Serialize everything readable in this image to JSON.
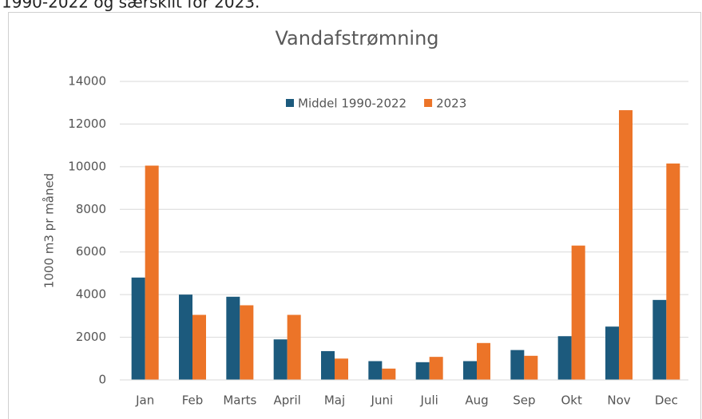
{
  "caption": "1990-2022 og særskilt for 2023.",
  "chart_data": {
    "type": "bar",
    "title": "Vandafstrømning",
    "y_label": "1000 m3 pr måned",
    "categories": [
      "Jan",
      "Feb",
      "Marts",
      "April",
      "Maj",
      "Juni",
      "Juli",
      "Aug",
      "Sep",
      "Okt",
      "Nov",
      "Dec"
    ],
    "series": [
      {
        "name": "Middel 1990-2022",
        "color": "#1c5a7d",
        "values": [
          4800,
          4000,
          3900,
          1900,
          1350,
          880,
          830,
          880,
          1400,
          2050,
          2500,
          3750
        ]
      },
      {
        "name": "2023",
        "color": "#ec7428",
        "values": [
          10050,
          3050,
          3500,
          3050,
          1000,
          530,
          1080,
          1730,
          1130,
          6300,
          12650,
          10150
        ]
      }
    ],
    "ylim": [
      0,
      14000
    ],
    "yticks": [
      0,
      2000,
      4000,
      6000,
      8000,
      10000,
      12000,
      14000
    ],
    "grid": true
  }
}
